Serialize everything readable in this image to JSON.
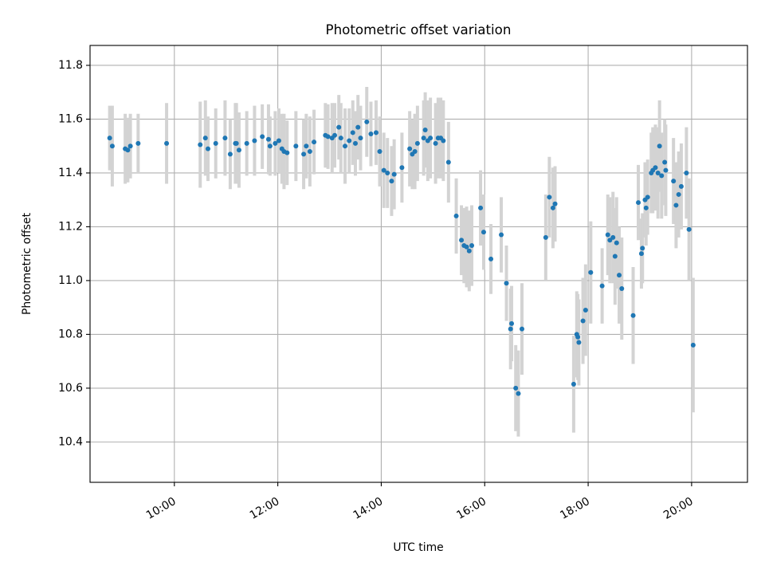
{
  "chart_data": {
    "type": "scatter",
    "title": "Photometric offset variation",
    "xlabel": "UTC time",
    "ylabel": "Photometric offset",
    "x_unit": "hours",
    "xlim": [
      8.37,
      21.08
    ],
    "ylim": [
      10.25,
      11.874
    ],
    "x_ticks": [
      {
        "value": 10,
        "label": "10:00"
      },
      {
        "value": 12,
        "label": "12:00"
      },
      {
        "value": 14,
        "label": "14:00"
      },
      {
        "value": 16,
        "label": "16:00"
      },
      {
        "value": 18,
        "label": "18:00"
      },
      {
        "value": 20,
        "label": "20:00"
      }
    ],
    "y_ticks": [
      {
        "value": 10.4,
        "label": "10.4"
      },
      {
        "value": 10.6,
        "label": "10.6"
      },
      {
        "value": 10.8,
        "label": "10.8"
      },
      {
        "value": 11.0,
        "label": "11.0"
      },
      {
        "value": 11.2,
        "label": "11.2"
      },
      {
        "value": 11.4,
        "label": "11.4"
      },
      {
        "value": 11.6,
        "label": "11.6"
      },
      {
        "value": 11.8,
        "label": "11.8"
      }
    ],
    "grid": true,
    "colors": {
      "marker": "#1f77b4",
      "errorbar": "#d3d3d3",
      "grid": "#b0b0b0"
    },
    "points": [
      [
        8.75,
        11.53,
        0.12
      ],
      [
        8.8,
        11.5,
        0.15
      ],
      [
        9.05,
        11.49,
        0.13
      ],
      [
        9.1,
        11.485,
        0.12
      ],
      [
        9.15,
        11.5,
        0.12
      ],
      [
        9.3,
        11.51,
        0.11
      ],
      [
        9.85,
        11.51,
        0.15
      ],
      [
        10.5,
        11.505,
        0.16
      ],
      [
        10.6,
        11.53,
        0.14
      ],
      [
        10.65,
        11.49,
        0.12
      ],
      [
        10.8,
        11.51,
        0.13
      ],
      [
        10.98,
        11.53,
        0.14
      ],
      [
        11.08,
        11.47,
        0.13
      ],
      [
        11.18,
        11.51,
        0.15
      ],
      [
        11.2,
        11.51,
        0.15
      ],
      [
        11.25,
        11.485,
        0.14
      ],
      [
        11.4,
        11.51,
        0.12
      ],
      [
        11.55,
        11.52,
        0.13
      ],
      [
        11.7,
        11.535,
        0.12
      ],
      [
        11.82,
        11.525,
        0.13
      ],
      [
        11.85,
        11.5,
        0.11
      ],
      [
        11.95,
        11.51,
        0.12
      ],
      [
        12.02,
        11.52,
        0.12
      ],
      [
        12.08,
        11.49,
        0.13
      ],
      [
        12.12,
        11.48,
        0.14
      ],
      [
        12.18,
        11.475,
        0.12
      ],
      [
        12.35,
        11.5,
        0.13
      ],
      [
        12.5,
        11.47,
        0.13
      ],
      [
        12.55,
        11.5,
        0.12
      ],
      [
        12.62,
        11.48,
        0.13
      ],
      [
        12.7,
        11.515,
        0.12
      ],
      [
        12.92,
        11.54,
        0.12
      ],
      [
        12.97,
        11.535,
        0.12
      ],
      [
        13.05,
        11.53,
        0.13
      ],
      [
        13.1,
        11.54,
        0.12
      ],
      [
        13.18,
        11.57,
        0.12
      ],
      [
        13.22,
        11.53,
        0.13
      ],
      [
        13.3,
        11.5,
        0.14
      ],
      [
        13.38,
        11.52,
        0.12
      ],
      [
        13.45,
        11.55,
        0.12
      ],
      [
        13.5,
        11.51,
        0.12
      ],
      [
        13.55,
        11.57,
        0.12
      ],
      [
        13.6,
        11.53,
        0.12
      ],
      [
        13.72,
        11.59,
        0.13
      ],
      [
        13.8,
        11.545,
        0.12
      ],
      [
        13.9,
        11.55,
        0.12
      ],
      [
        13.97,
        11.48,
        0.13
      ],
      [
        14.05,
        11.41,
        0.14
      ],
      [
        14.12,
        11.4,
        0.13
      ],
      [
        14.2,
        11.37,
        0.13
      ],
      [
        14.25,
        11.395,
        0.13
      ],
      [
        14.4,
        11.42,
        0.13
      ],
      [
        14.55,
        11.49,
        0.14
      ],
      [
        14.6,
        11.47,
        0.13
      ],
      [
        14.65,
        11.48,
        0.14
      ],
      [
        14.7,
        11.51,
        0.14
      ],
      [
        14.82,
        11.53,
        0.14
      ],
      [
        14.85,
        11.56,
        0.14
      ],
      [
        14.9,
        11.52,
        0.15
      ],
      [
        14.95,
        11.53,
        0.15
      ],
      [
        15.05,
        11.51,
        0.15
      ],
      [
        15.1,
        11.53,
        0.15
      ],
      [
        15.15,
        11.53,
        0.15
      ],
      [
        15.2,
        11.52,
        0.15
      ],
      [
        15.3,
        11.44,
        0.15
      ],
      [
        15.45,
        11.24,
        0.14
      ],
      [
        15.55,
        11.15,
        0.13
      ],
      [
        15.6,
        11.13,
        0.14
      ],
      [
        15.65,
        11.125,
        0.15
      ],
      [
        15.7,
        11.11,
        0.15
      ],
      [
        15.75,
        11.13,
        0.15
      ],
      [
        15.92,
        11.27,
        0.14
      ],
      [
        15.98,
        11.18,
        0.14
      ],
      [
        16.12,
        11.08,
        0.13
      ],
      [
        16.32,
        11.17,
        0.14
      ],
      [
        16.42,
        10.99,
        0.14
      ],
      [
        16.5,
        10.82,
        0.15
      ],
      [
        16.52,
        10.84,
        0.14
      ],
      [
        16.6,
        10.6,
        0.16
      ],
      [
        16.65,
        10.58,
        0.16
      ],
      [
        16.72,
        10.82,
        0.17
      ],
      [
        17.18,
        11.16,
        0.16
      ],
      [
        17.25,
        11.31,
        0.15
      ],
      [
        17.32,
        11.27,
        0.15
      ],
      [
        17.36,
        11.285,
        0.14
      ],
      [
        17.72,
        10.615,
        0.18
      ],
      [
        17.78,
        10.8,
        0.16
      ],
      [
        17.8,
        10.79,
        0.16
      ],
      [
        17.82,
        10.77,
        0.16
      ],
      [
        17.9,
        10.85,
        0.16
      ],
      [
        17.95,
        10.89,
        0.17
      ],
      [
        18.05,
        11.03,
        0.19
      ],
      [
        18.27,
        10.98,
        0.14
      ],
      [
        18.38,
        11.17,
        0.15
      ],
      [
        18.42,
        11.15,
        0.16
      ],
      [
        18.48,
        11.16,
        0.17
      ],
      [
        18.52,
        11.09,
        0.18
      ],
      [
        18.55,
        11.14,
        0.17
      ],
      [
        18.6,
        11.02,
        0.18
      ],
      [
        18.65,
        10.97,
        0.19
      ],
      [
        18.87,
        10.87,
        0.18
      ],
      [
        18.97,
        11.29,
        0.14
      ],
      [
        19.03,
        11.1,
        0.13
      ],
      [
        19.05,
        11.12,
        0.13
      ],
      [
        19.1,
        11.3,
        0.14
      ],
      [
        19.12,
        11.27,
        0.14
      ],
      [
        19.15,
        11.31,
        0.14
      ],
      [
        19.22,
        11.4,
        0.15
      ],
      [
        19.25,
        11.41,
        0.16
      ],
      [
        19.3,
        11.42,
        0.16
      ],
      [
        19.35,
        11.4,
        0.17
      ],
      [
        19.38,
        11.5,
        0.17
      ],
      [
        19.42,
        11.39,
        0.16
      ],
      [
        19.48,
        11.44,
        0.16
      ],
      [
        19.5,
        11.41,
        0.17
      ],
      [
        19.65,
        11.37,
        0.16
      ],
      [
        19.7,
        11.28,
        0.16
      ],
      [
        19.75,
        11.32,
        0.16
      ],
      [
        19.8,
        11.35,
        0.16
      ],
      [
        19.9,
        11.4,
        0.17
      ],
      [
        19.95,
        11.19,
        0.19
      ],
      [
        20.03,
        10.76,
        0.25
      ]
    ]
  }
}
